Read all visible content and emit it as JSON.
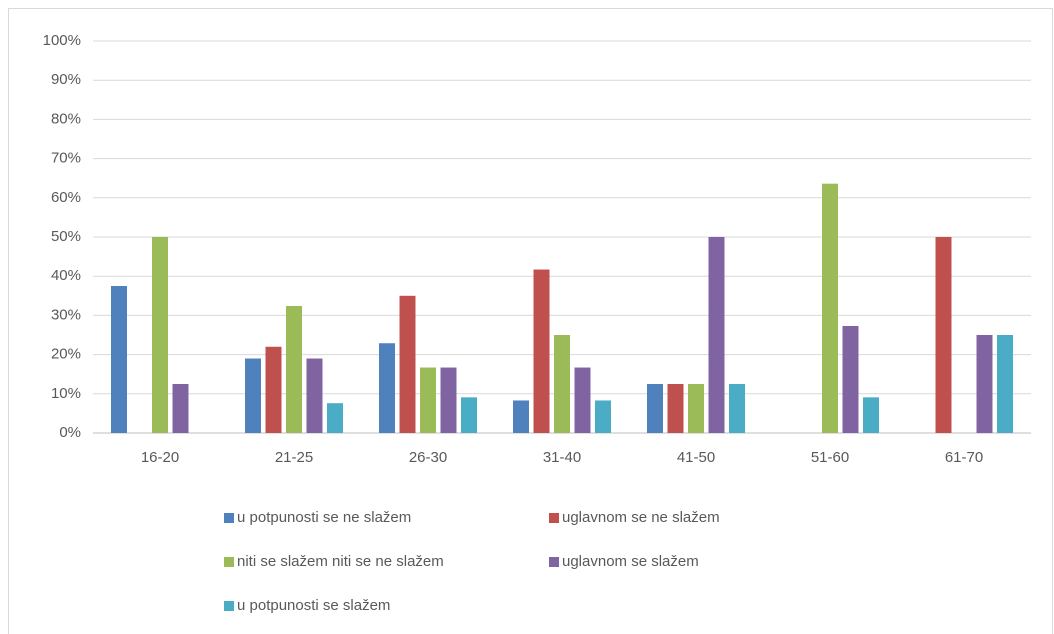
{
  "chart_data": {
    "type": "bar",
    "categories": [
      "16-20",
      "21-25",
      "26-30",
      "31-40",
      "41-50",
      "51-60",
      "61-70"
    ],
    "series": [
      {
        "name": "u potpunosti se ne slažem",
        "color": "#4f81bd",
        "values": [
          37.5,
          19,
          22.9,
          8.3,
          12.5,
          0,
          0
        ]
      },
      {
        "name": "uglavnom se ne slažem",
        "color": "#c0504d",
        "values": [
          0,
          22,
          35,
          41.7,
          12.5,
          0,
          50
        ]
      },
      {
        "name": "niti se slažem niti se ne slažem",
        "color": "#9bbb59",
        "values": [
          50,
          32.4,
          16.7,
          25,
          12.5,
          63.6,
          0
        ]
      },
      {
        "name": "uglavnom se slažem",
        "color": "#8064a2",
        "values": [
          12.5,
          19,
          16.7,
          16.7,
          50,
          27.3,
          25
        ]
      },
      {
        "name": "u potpunosti se slažem",
        "color": "#4bacc6",
        "values": [
          0,
          7.6,
          9.1,
          8.3,
          12.5,
          9.1,
          25
        ]
      }
    ],
    "ylim": [
      0,
      100
    ],
    "yticks": [
      {
        "value": 0,
        "label": "0%"
      },
      {
        "value": 10,
        "label": "10%"
      },
      {
        "value": 20,
        "label": "20%"
      },
      {
        "value": 30,
        "label": "30%"
      },
      {
        "value": 40,
        "label": "40%"
      },
      {
        "value": 50,
        "label": "50%"
      },
      {
        "value": 60,
        "label": "60%"
      },
      {
        "value": 70,
        "label": "70%"
      },
      {
        "value": 80,
        "label": "80%"
      },
      {
        "value": 90,
        "label": "90%"
      },
      {
        "value": 100,
        "label": "100%"
      }
    ],
    "grid": true,
    "legend": "bottom"
  }
}
